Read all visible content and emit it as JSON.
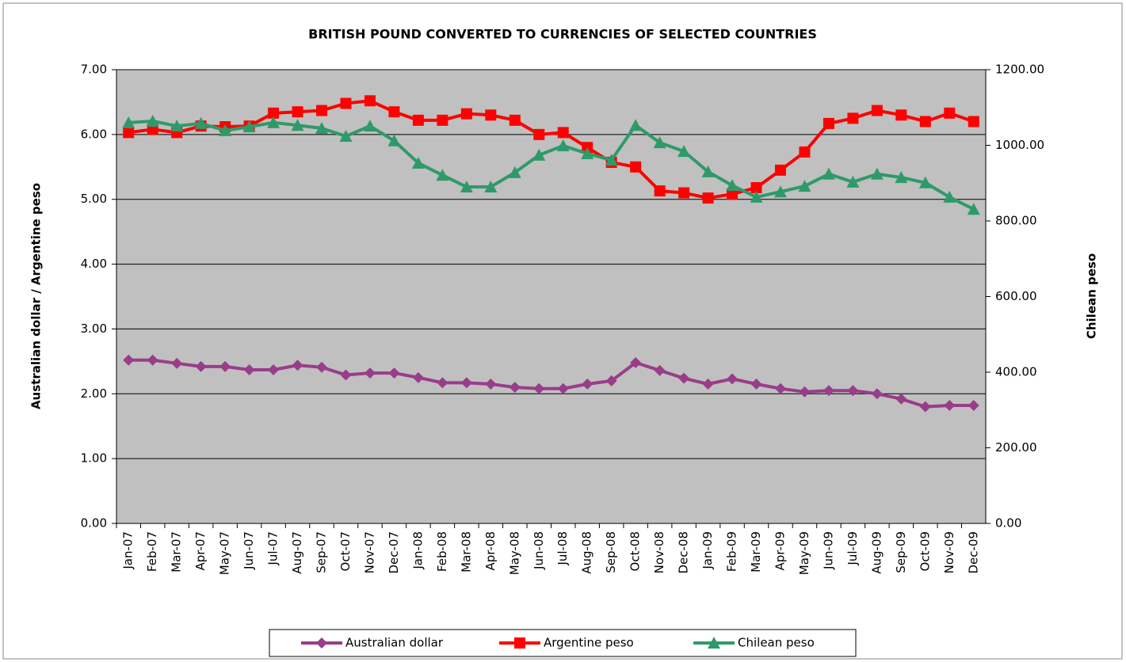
{
  "chart_data": {
    "type": "line",
    "title": "BRITISH POUND CONVERTED  TO CURRENCIES OF SELECTED COUNTRIES",
    "y_label": "Australian dollar / Argentine peso",
    "y2_label": "Chilean peso",
    "categories": [
      "Jan-07",
      "Feb-07",
      "Mar-07",
      "Apr-07",
      "May-07",
      "Jun-07",
      "Jul-07",
      "Aug-07",
      "Sep-07",
      "Oct-07",
      "Nov-07",
      "Dec-07",
      "Jan-08",
      "Feb-08",
      "Mar-08",
      "Apr-08",
      "May-08",
      "Jun-08",
      "Jul-08",
      "Aug-08",
      "Sep-08",
      "Oct-08",
      "Nov-08",
      "Dec-08",
      "Jan-09",
      "Feb-09",
      "Mar-09",
      "Apr-09",
      "May-09",
      "Jun-09",
      "Jul-09",
      "Aug-09",
      "Sep-09",
      "Oct-09",
      "Nov-09",
      "Dec-09"
    ],
    "series": [
      {
        "name": "Australian dollar",
        "color": "#993d8a",
        "marker": "diamond",
        "values": [
          2.52,
          2.52,
          2.47,
          2.42,
          2.42,
          2.37,
          2.37,
          2.44,
          2.41,
          2.29,
          2.32,
          2.32,
          2.25,
          2.17,
          2.17,
          2.15,
          2.1,
          2.08,
          2.08,
          2.15,
          2.2,
          2.48,
          2.36,
          2.24,
          2.15,
          2.23,
          2.15,
          2.08,
          2.03,
          2.05,
          2.05,
          2.0,
          1.92,
          1.8,
          1.82,
          1.82
        ]
      },
      {
        "name": "Argentine peso",
        "color": "#ff0000",
        "marker": "square",
        "values": [
          6.03,
          6.08,
          6.03,
          6.13,
          6.12,
          6.13,
          6.33,
          6.35,
          6.37,
          6.48,
          6.52,
          6.35,
          6.22,
          6.22,
          6.32,
          6.3,
          6.22,
          6.0,
          6.03,
          5.8,
          5.57,
          5.5,
          5.13,
          5.1,
          5.02,
          5.08,
          5.18,
          5.45,
          5.73,
          6.17,
          6.25,
          6.37,
          6.3,
          6.2,
          6.33,
          6.2
        ]
      },
      {
        "name": "Chilean peso",
        "color": "#2e9a6a",
        "marker": "triangle",
        "axis": "y2",
        "values": [
          1060,
          1064,
          1051,
          1058,
          1039,
          1049,
          1060,
          1053,
          1045,
          1024,
          1051,
          1012,
          953,
          921,
          890,
          890,
          928,
          974,
          999,
          978,
          961,
          1053,
          1007,
          984,
          930,
          894,
          863,
          877,
          892,
          924,
          903,
          924,
          915,
          901,
          863,
          831
        ]
      }
    ],
    "ylim": [
      0,
      7
    ],
    "yticks": [
      {
        "value": 0,
        "label": "0.00"
      },
      {
        "value": 1,
        "label": "1.00"
      },
      {
        "value": 2,
        "label": "2.00"
      },
      {
        "value": 3,
        "label": "3.00"
      },
      {
        "value": 4,
        "label": "4.00"
      },
      {
        "value": 5,
        "label": "5.00"
      },
      {
        "value": 6,
        "label": "6.00"
      },
      {
        "value": 7,
        "label": "7.00"
      }
    ],
    "y2lim": [
      0,
      1200
    ],
    "y2ticks": [
      {
        "value": 0,
        "label": "0.00"
      },
      {
        "value": 200,
        "label": "200.00"
      },
      {
        "value": 400,
        "label": "400.00"
      },
      {
        "value": 600,
        "label": "600.00"
      },
      {
        "value": 800,
        "label": "800.00"
      },
      {
        "value": 1000,
        "label": "1000.00"
      },
      {
        "value": 1200,
        "label": "1200.00"
      }
    ],
    "grid": true,
    "legend": "bottom",
    "plot_background": "#c0c0c0"
  }
}
